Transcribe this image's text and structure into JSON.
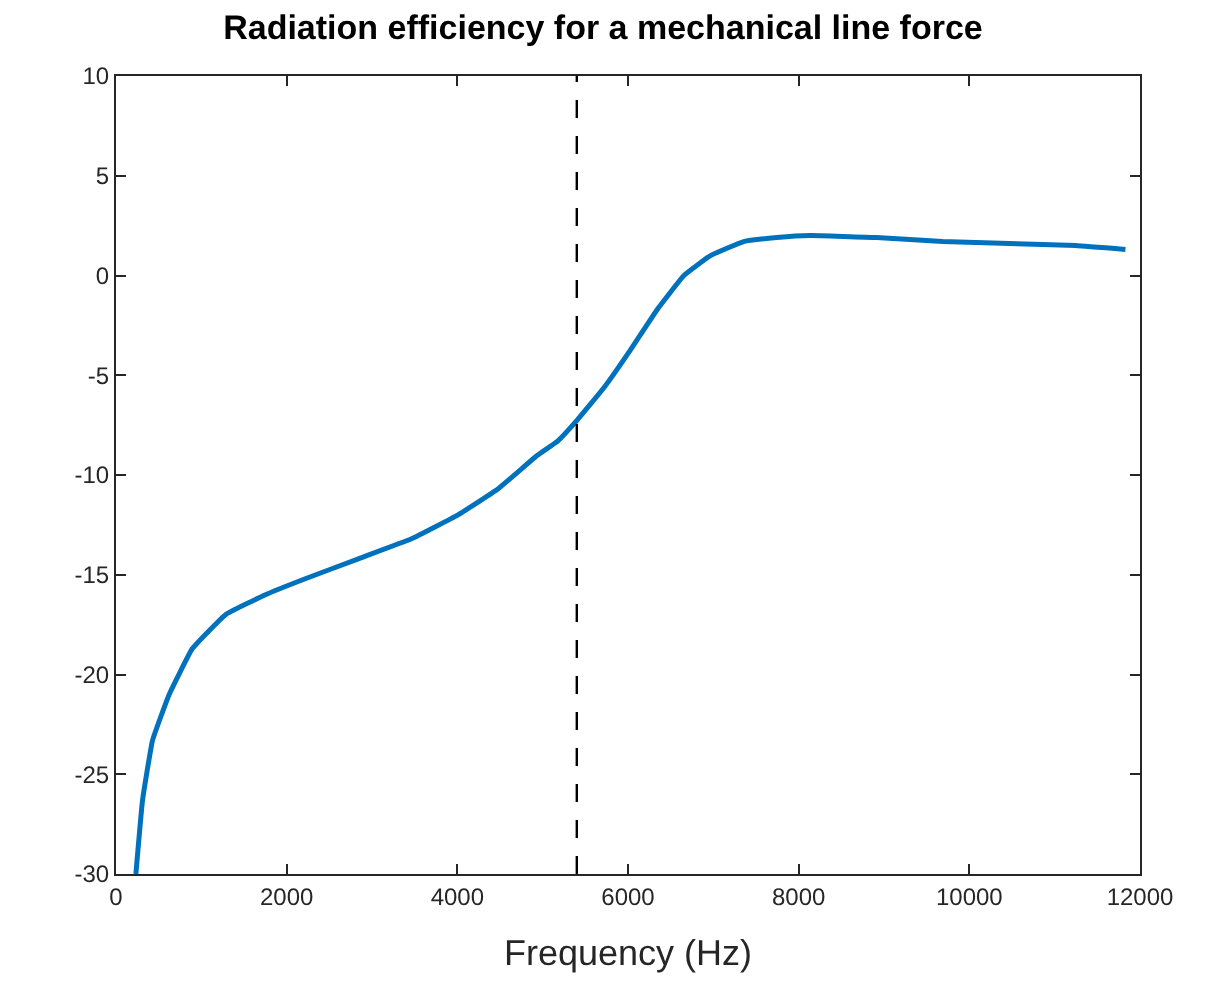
{
  "chart_data": {
    "type": "line",
    "title": "Radiation efficiency for a mechanical line force",
    "xlabel": "Frequency (Hz)",
    "xlim": [
      0,
      12000
    ],
    "xticks": [
      0,
      2000,
      4000,
      6000,
      8000,
      10000,
      12000
    ],
    "ylim": [
      -30,
      10
    ],
    "yticks": [
      -30,
      -25,
      -20,
      -15,
      -10,
      -5,
      0,
      5,
      10
    ],
    "line_style": "solid",
    "marker": "none",
    "ref_lines": [
      {
        "axis": "x",
        "value": 5400,
        "color": "#000000",
        "line_style": "dashed"
      }
    ],
    "series": [
      {
        "color": "#0072bd",
        "x": [
          233,
          311,
          428,
          623,
          895,
          1284,
          1751,
          2218,
          2840,
          3463,
          4008,
          4475,
          4942,
          5176,
          5394,
          5722,
          6033,
          6343,
          6655,
          6967,
          7355,
          7744,
          8134,
          8912,
          9690,
          10469,
          11247,
          11830
        ],
        "values": [
          -30,
          -26.3,
          -23.3,
          -21,
          -18.7,
          -17,
          -16,
          -15.2,
          -14.2,
          -13.2,
          -12,
          -10.7,
          -9,
          -8.3,
          -7.3,
          -5.6,
          -3.7,
          -1.7,
          0,
          1.0,
          1.7,
          1.9,
          2.0,
          1.9,
          1.7,
          1.6,
          1.5,
          1.3
        ]
      }
    ]
  }
}
